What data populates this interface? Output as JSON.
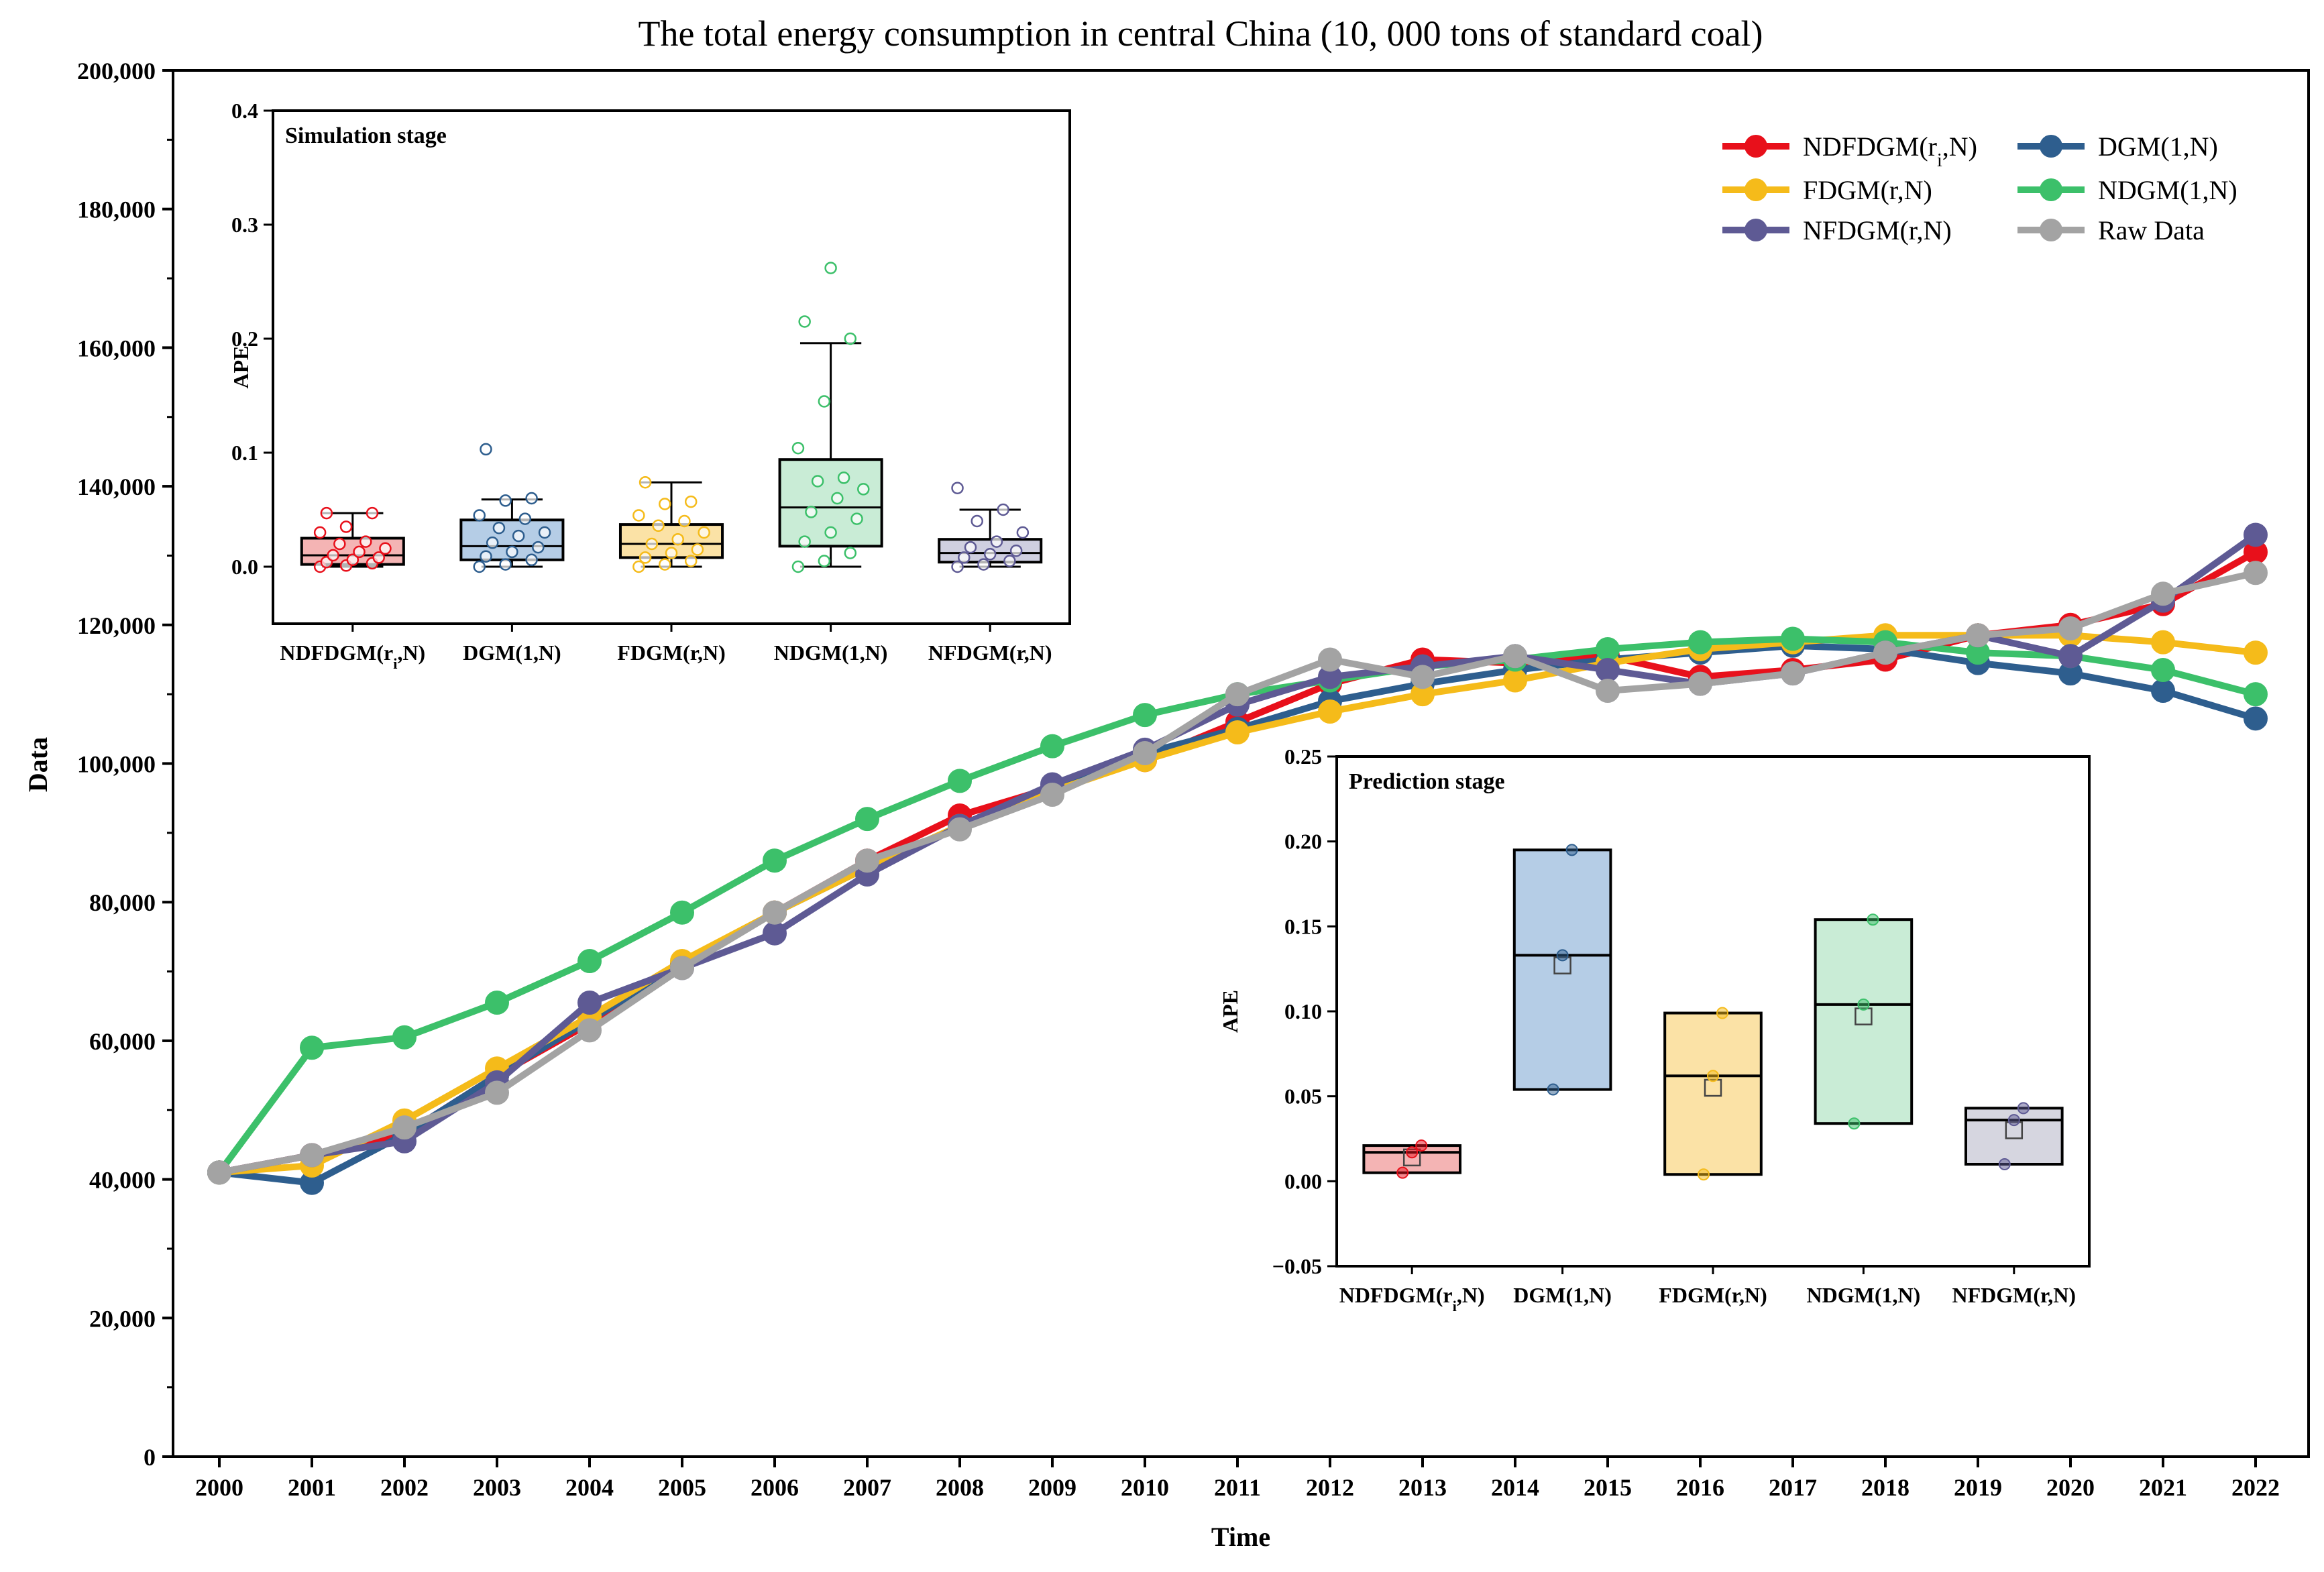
{
  "chart_data": [
    {
      "type": "line",
      "title": "The total energy consumption in central China (10, 000 tons of standard coal)",
      "xlabel": "Time",
      "ylabel": "Data",
      "ylim": [
        0,
        200000
      ],
      "ytick_labels": [
        "0",
        "20,000",
        "40,000",
        "60,000",
        "80,000",
        "100,000",
        "120,000",
        "140,000",
        "160,000",
        "180,000",
        "200,000"
      ],
      "yticks": [
        0,
        20000,
        40000,
        60000,
        80000,
        100000,
        120000,
        140000,
        160000,
        180000,
        200000
      ],
      "categories": [
        "2000",
        "2001",
        "2002",
        "2003",
        "2004",
        "2005",
        "2006",
        "2007",
        "2008",
        "2009",
        "2010",
        "2011",
        "2012",
        "2013",
        "2014",
        "2015",
        "2016",
        "2017",
        "2018",
        "2019",
        "2020",
        "2021",
        "2022"
      ],
      "legend_position": "top-right",
      "series": [
        {
          "name": "NDFDGM(ri,N)",
          "name_main": "NDFDGM(r",
          "name_sub": "i",
          "name_end": ",N)",
          "color": "#e8101b",
          "values": [
            41000,
            43500,
            46500,
            55000,
            62500,
            71000,
            78500,
            86000,
            92500,
            96500,
            100500,
            106000,
            111500,
            115000,
            114500,
            115500,
            112500,
            113500,
            115000,
            118500,
            120000,
            123000,
            130500
          ]
        },
        {
          "name": "DGM(1,N)",
          "color": "#2e5e8e",
          "values": [
            41000,
            39500,
            46500,
            55000,
            63000,
            71000,
            78500,
            85000,
            91000,
            96500,
            101500,
            105000,
            109000,
            111500,
            113500,
            115000,
            116000,
            117000,
            116500,
            114500,
            113000,
            110500,
            106500
          ]
        },
        {
          "name": "FDGM(r,N)",
          "color": "#f5bb1a",
          "values": [
            41000,
            42000,
            48500,
            56000,
            63500,
            71500,
            78500,
            85000,
            91000,
            96000,
            100500,
            104500,
            107500,
            110000,
            112000,
            114500,
            116500,
            117500,
            118500,
            118500,
            118500,
            117500,
            116000
          ]
        },
        {
          "name": "NDGM(1,N)",
          "color": "#3cc06a",
          "values": [
            41000,
            59000,
            60500,
            65500,
            71500,
            78500,
            86000,
            92000,
            97500,
            102500,
            107000,
            110000,
            112000,
            114000,
            115000,
            116500,
            117500,
            118000,
            117500,
            116000,
            115500,
            113500,
            110000
          ]
        },
        {
          "name": "NFDGM(r,N)",
          "color": "#5e5a94",
          "values": [
            41000,
            43500,
            45500,
            54000,
            65500,
            70500,
            75500,
            84000,
            91000,
            97000,
            102000,
            108500,
            112500,
            114000,
            115500,
            113500,
            111500,
            113000,
            116000,
            118500,
            115500,
            123500,
            133000
          ]
        },
        {
          "name": "Raw Data",
          "color": "#a3a3a3",
          "values": [
            41000,
            43500,
            47500,
            52500,
            61500,
            70500,
            78500,
            86000,
            90500,
            95500,
            101500,
            110000,
            115000,
            112500,
            115500,
            110500,
            111500,
            113000,
            116000,
            118500,
            119500,
            124500,
            127500
          ]
        }
      ]
    },
    {
      "type": "box",
      "title": "Simulation stage",
      "ylabel": "APE",
      "ylim": [
        -0.05,
        0.4
      ],
      "ytick_labels": [
        "0.0",
        "0.1",
        "0.2",
        "0.3",
        "0.4"
      ],
      "yticks": [
        0,
        0.1,
        0.2,
        0.3,
        0.4
      ],
      "categories": [
        {
          "main": "NDFDGM(r",
          "sub": "i",
          "end": ",N)"
        },
        {
          "main": "DGM(1,N)",
          "sub": "",
          "end": ""
        },
        {
          "main": "FDGM(r,N)",
          "sub": "",
          "end": ""
        },
        {
          "main": "NDGM(1,N)",
          "sub": "",
          "end": ""
        },
        {
          "main": "NFDGM(r,N)",
          "sub": "",
          "end": ""
        }
      ],
      "boxes": [
        {
          "fill": "#f4b4b4",
          "edge": "#e8101b",
          "whisker_low": 0.0,
          "q1": 0.002,
          "median": 0.01,
          "q3": 0.025,
          "whisker_high": 0.047,
          "points": [
            0.0,
            0.001,
            0.003,
            0.004,
            0.006,
            0.008,
            0.01,
            0.013,
            0.016,
            0.02,
            0.022,
            0.03,
            0.035,
            0.047,
            0.047
          ]
        },
        {
          "fill": "#b5cde6",
          "edge": "#2e5e8e",
          "whisker_low": 0.0,
          "q1": 0.006,
          "median": 0.018,
          "q3": 0.041,
          "whisker_high": 0.059,
          "points": [
            0.0,
            0.002,
            0.006,
            0.009,
            0.013,
            0.017,
            0.021,
            0.027,
            0.03,
            0.034,
            0.042,
            0.045,
            0.058,
            0.06,
            0.103
          ]
        },
        {
          "fill": "#fbe2a6",
          "edge": "#f5bb1a",
          "whisker_low": 0.0,
          "q1": 0.008,
          "median": 0.02,
          "q3": 0.037,
          "whisker_high": 0.074,
          "points": [
            0.0,
            0.002,
            0.005,
            0.008,
            0.012,
            0.015,
            0.02,
            0.024,
            0.03,
            0.036,
            0.04,
            0.045,
            0.055,
            0.057,
            0.074
          ]
        },
        {
          "fill": "#c9ecd6",
          "edge": "#3cc06a",
          "whisker_low": 0.0,
          "q1": 0.018,
          "median": 0.052,
          "q3": 0.094,
          "whisker_high": 0.196,
          "points": [
            0.0,
            0.005,
            0.012,
            0.022,
            0.03,
            0.042,
            0.048,
            0.06,
            0.068,
            0.075,
            0.078,
            0.104,
            0.145,
            0.2,
            0.215,
            0.262
          ]
        },
        {
          "fill": "#cfcfe0",
          "edge": "#5e5a94",
          "whisker_low": 0.0,
          "q1": 0.004,
          "median": 0.012,
          "q3": 0.024,
          "whisker_high": 0.05,
          "points": [
            0.0,
            0.002,
            0.005,
            0.008,
            0.011,
            0.014,
            0.017,
            0.022,
            0.03,
            0.04,
            0.05,
            0.069
          ]
        }
      ]
    },
    {
      "type": "box",
      "title": "Prediction stage",
      "ylabel": "APE",
      "ylim": [
        -0.05,
        0.25
      ],
      "ytick_labels": [
        "−0.05",
        "0.00",
        "0.05",
        "0.10",
        "0.15",
        "0.20",
        "0.25"
      ],
      "yticks": [
        -0.05,
        0,
        0.05,
        0.1,
        0.15,
        0.2,
        0.25
      ],
      "categories": [
        {
          "main": "NDFDGM(r",
          "sub": "i",
          "end": ",N)"
        },
        {
          "main": "DGM(1,N)",
          "sub": "",
          "end": ""
        },
        {
          "main": "FDGM(r,N)",
          "sub": "",
          "end": ""
        },
        {
          "main": "NDGM(1,N)",
          "sub": "",
          "end": ""
        },
        {
          "main": "NFDGM(r,N)",
          "sub": "",
          "end": ""
        }
      ],
      "boxes": [
        {
          "fill": "#f4b4b4",
          "edge": "#e8101b",
          "low": 0.005,
          "median": 0.017,
          "high": 0.021,
          "mean": 0.014,
          "points": [
            0.005,
            0.017,
            0.021
          ]
        },
        {
          "fill": "#b5cde6",
          "edge": "#2e5e8e",
          "low": 0.054,
          "median": 0.133,
          "high": 0.195,
          "mean": 0.127,
          "points": [
            0.054,
            0.133,
            0.195
          ]
        },
        {
          "fill": "#fbe2a6",
          "edge": "#f5bb1a",
          "low": 0.004,
          "median": 0.062,
          "high": 0.099,
          "mean": 0.055,
          "points": [
            0.004,
            0.062,
            0.099
          ]
        },
        {
          "fill": "#c9ecd6",
          "edge": "#3cc06a",
          "low": 0.034,
          "median": 0.104,
          "high": 0.154,
          "mean": 0.097,
          "points": [
            0.034,
            0.104,
            0.154
          ]
        },
        {
          "fill": "#d6d6e0",
          "edge": "#5e5a94",
          "low": 0.01,
          "median": 0.036,
          "high": 0.043,
          "mean": 0.03,
          "points": [
            0.01,
            0.036,
            0.043
          ]
        }
      ]
    }
  ]
}
